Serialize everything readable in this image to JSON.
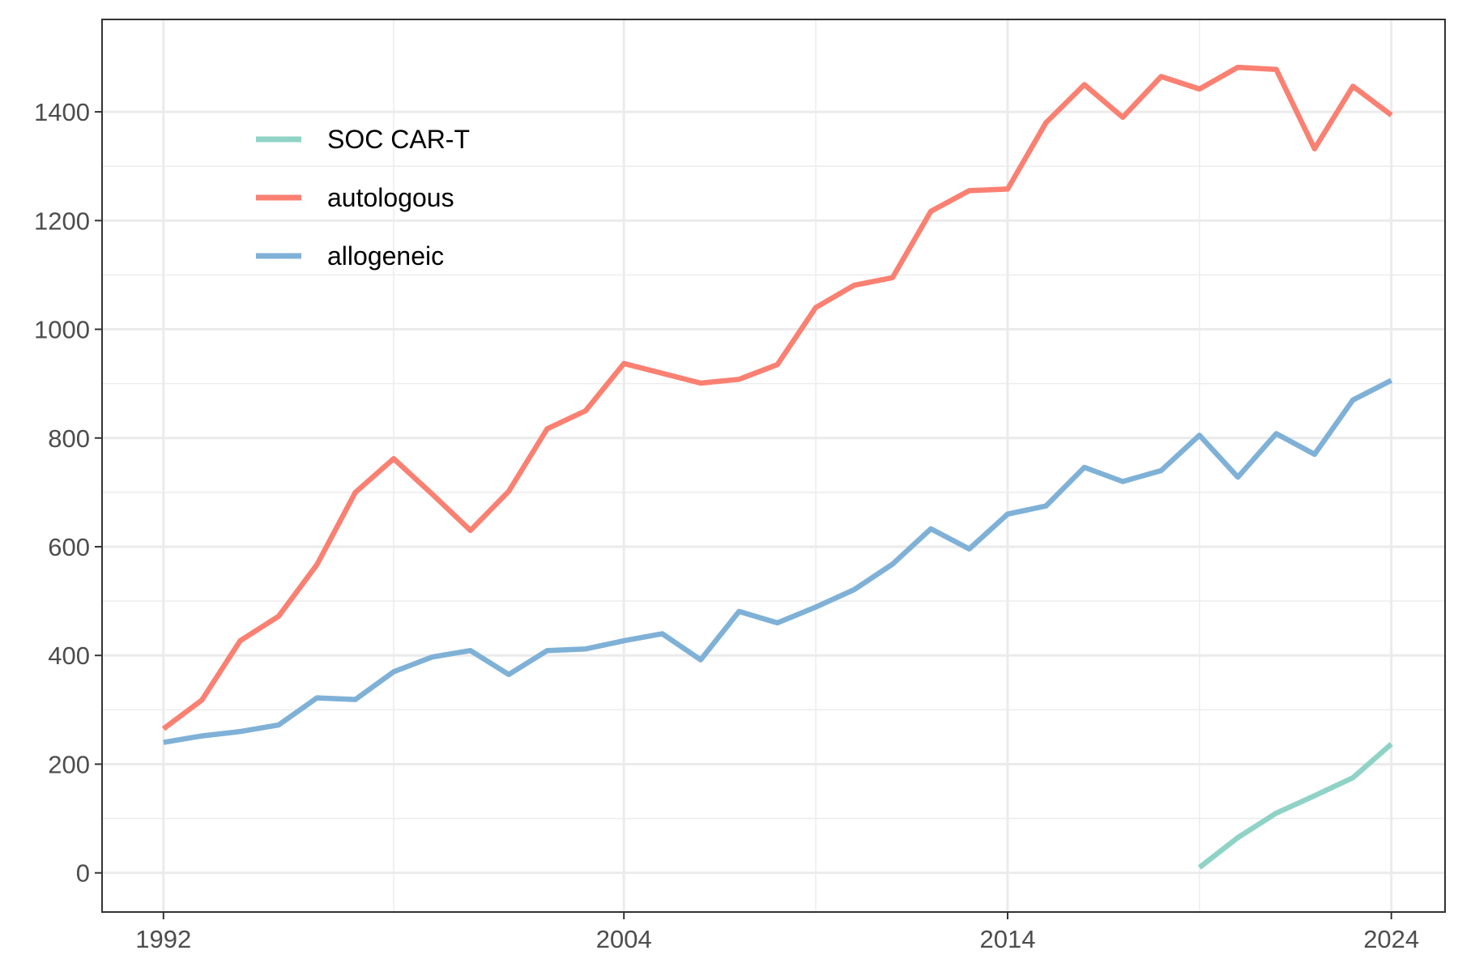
{
  "chart_data": {
    "type": "line",
    "title": "",
    "xlabel": "",
    "ylabel": "",
    "xlim": [
      1990.4,
      2025.4
    ],
    "ylim": [
      -72,
      1570
    ],
    "x_ticks": [
      1992,
      2004,
      2014,
      2024
    ],
    "y_ticks": [
      0,
      200,
      400,
      600,
      800,
      1000,
      1200,
      1400
    ],
    "grid": true,
    "legend_position": "top-left",
    "series": [
      {
        "name": "SOC CAR-T",
        "color": "#8FD3C6",
        "x": [
          2019,
          2020,
          2021,
          2022,
          2023,
          2024
        ],
        "y": [
          10,
          65,
          110,
          142,
          175,
          237
        ]
      },
      {
        "name": "autologous",
        "color": "#FA8072",
        "x": [
          1992,
          1993,
          1994,
          1995,
          1996,
          1997,
          1998,
          1999,
          2000,
          2001,
          2002,
          2003,
          2004,
          2005,
          2006,
          2007,
          2008,
          2009,
          2010,
          2011,
          2012,
          2013,
          2014,
          2015,
          2016,
          2017,
          2018,
          2019,
          2020,
          2021,
          2022,
          2023,
          2024
        ],
        "y": [
          265,
          318,
          427,
          472,
          567,
          700,
          762,
          697,
          630,
          702,
          817,
          850,
          937,
          919,
          901,
          908,
          935,
          1040,
          1081,
          1095,
          1217,
          1255,
          1258,
          1380,
          1450,
          1390,
          1465,
          1442,
          1482,
          1478,
          1332,
          1447,
          1394
        ]
      },
      {
        "name": "allogeneic",
        "color": "#7FB1D7",
        "x": [
          1992,
          1993,
          1994,
          1995,
          1996,
          1997,
          1998,
          1999,
          2000,
          2001,
          2002,
          2003,
          2004,
          2005,
          2006,
          2007,
          2008,
          2009,
          2010,
          2011,
          2012,
          2013,
          2014,
          2015,
          2016,
          2017,
          2018,
          2019,
          2020,
          2021,
          2022,
          2023,
          2024
        ],
        "y": [
          240,
          252,
          260,
          272,
          322,
          319,
          370,
          397,
          409,
          365,
          409,
          412,
          427,
          440,
          392,
          481,
          460,
          489,
          521,
          568,
          633,
          596,
          660,
          675,
          746,
          720,
          740,
          805,
          728,
          808,
          770,
          870,
          906
        ]
      }
    ]
  }
}
